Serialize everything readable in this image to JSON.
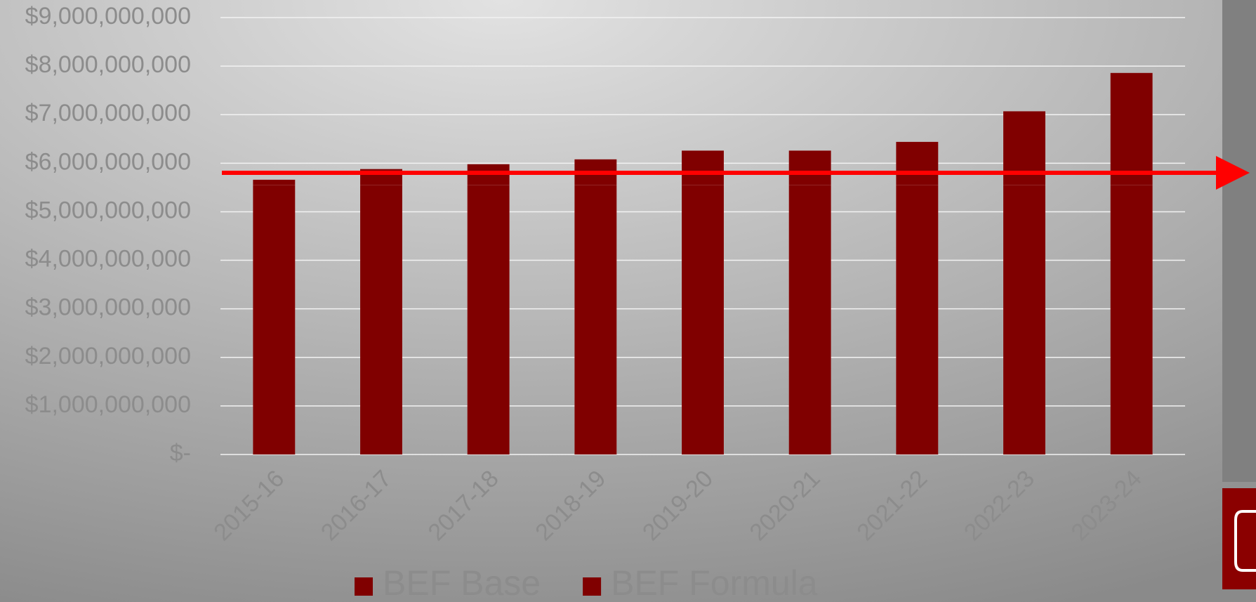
{
  "chart_data": {
    "type": "stacked_bar",
    "categories": [
      "2015-16",
      "2016-17",
      "2017-18",
      "2018-19",
      "2019-20",
      "2020-21",
      "2021-22",
      "2022-23",
      "2023-24"
    ],
    "series": [
      {
        "name": "BEF Base",
        "color": "#800000",
        "values": [
          5550000000,
          5550000000,
          5550000000,
          5550000000,
          5550000000,
          5550000000,
          5550000000,
          5550000000,
          5550000000
        ]
      },
      {
        "name": "BEF Formula",
        "color": "#800000",
        "values": [
          110000000,
          330000000,
          430000000,
          530000000,
          710000000,
          710000000,
          890000000,
          1520000000,
          2310000000
        ]
      }
    ],
    "ylim": [
      0,
      9000000000
    ],
    "yticks": [
      {
        "value": 0,
        "label": "$-"
      },
      {
        "value": 1000000000,
        "label": "$1,000,000,000"
      },
      {
        "value": 2000000000,
        "label": "$2,000,000,000"
      },
      {
        "value": 3000000000,
        "label": "$3,000,000,000"
      },
      {
        "value": 4000000000,
        "label": "$4,000,000,000"
      },
      {
        "value": 5000000000,
        "label": "$5,000,000,000"
      },
      {
        "value": 6000000000,
        "label": "$6,000,000,000"
      },
      {
        "value": 7000000000,
        "label": "$7,000,000,000"
      },
      {
        "value": 8000000000,
        "label": "$8,000,000,000"
      },
      {
        "value": 9000000000,
        "label": "$9,000,000,000"
      }
    ],
    "grid": true,
    "legend": "bottom"
  }
}
